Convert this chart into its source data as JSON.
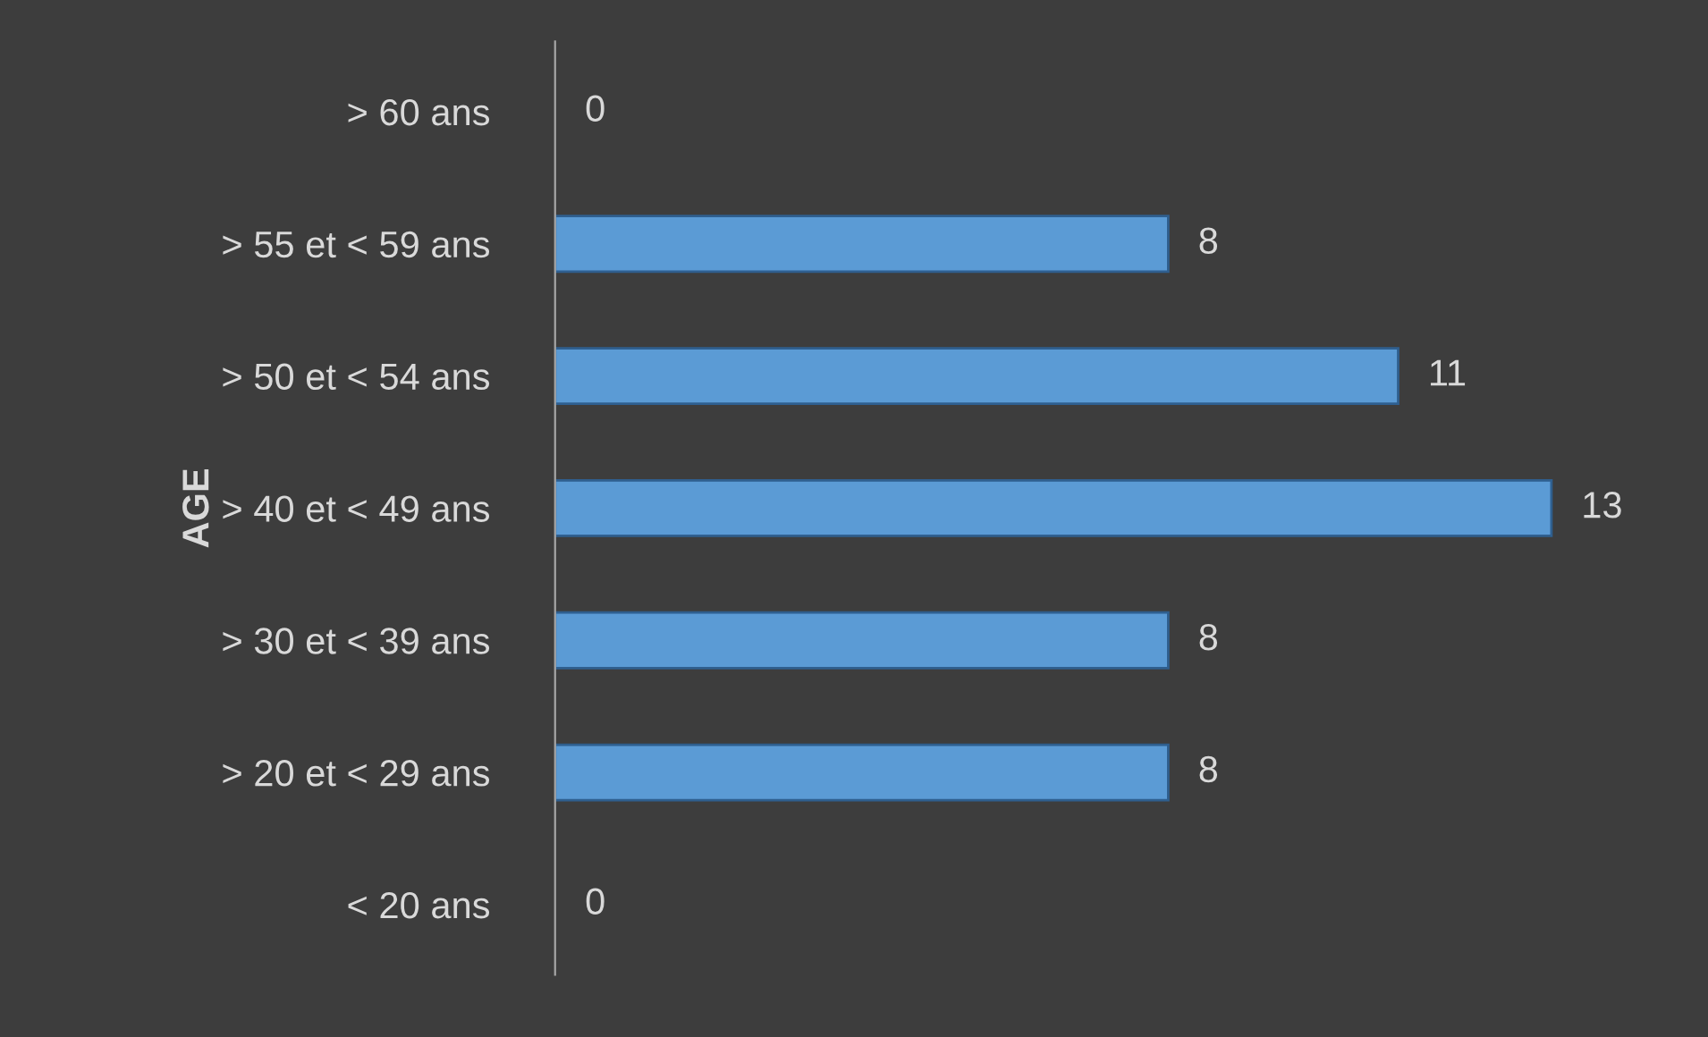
{
  "chart_data": {
    "type": "bar",
    "orientation": "horizontal",
    "ylabel": "AGE",
    "categories": [
      "> 60 ans",
      "> 55 et < 59 ans",
      "> 50 et < 54 ans",
      "> 40 et < 49 ans",
      "> 30 et < 39 ans",
      "> 20 et < 29 ans",
      "< 20 ans"
    ],
    "values": [
      0,
      8,
      11,
      13,
      8,
      8,
      0
    ],
    "color": "#5b9bd5",
    "data_labels": true,
    "grid": false,
    "legend": false
  }
}
